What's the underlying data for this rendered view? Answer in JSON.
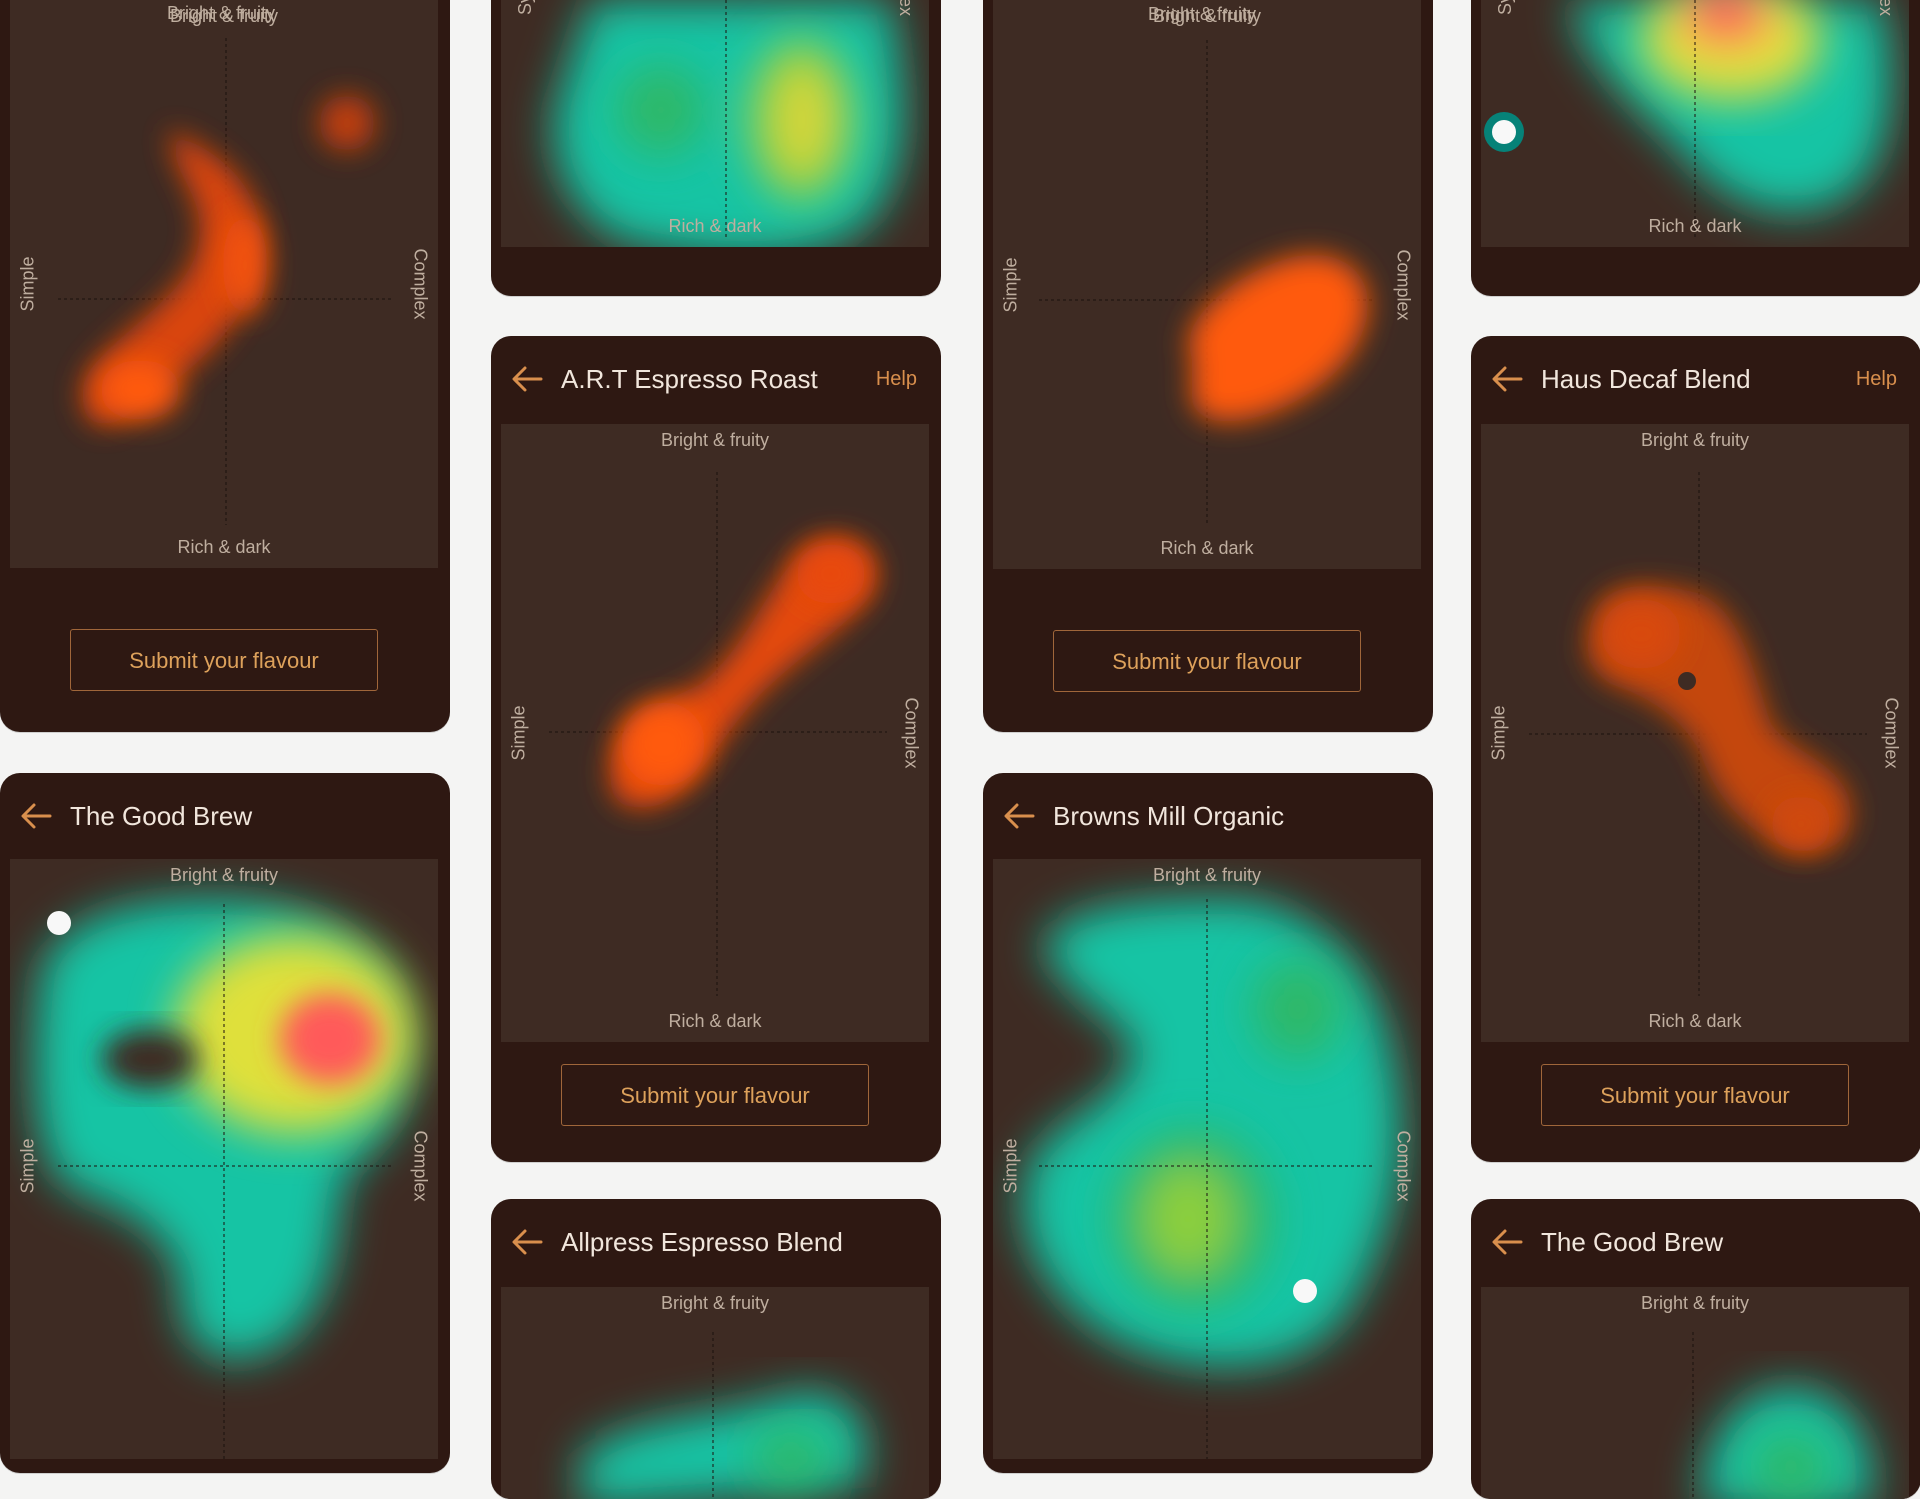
{
  "axes": {
    "top": "Bright & fruity",
    "bottom": "Rich & dark",
    "left": "Simple",
    "right": "Complex",
    "top_cut_a": "fruity",
    "right_cut": "ex",
    "left_cut": "Sy"
  },
  "submit_label": "Submit your flavour",
  "help_label": "Help",
  "colors": {
    "card_bg": "#2e1812",
    "plot_bg": "#3e2b23",
    "accent": "#d98f4d",
    "heat_orange": "#ff5a10",
    "heat_teal": "#14c4a4",
    "heat_yellow": "#e4e03a",
    "heat_red": "#ff5a5a"
  },
  "cards": {
    "c1": {
      "title": ""
    },
    "c2": {
      "title": ""
    },
    "c3": {
      "title": ""
    },
    "c4": {
      "title": ""
    },
    "c5": {
      "title": "A.R.T Espresso Roast"
    },
    "c6": {
      "title": "Haus Decaf Blend"
    },
    "c7": {
      "title": "The Good Brew"
    },
    "c8": {
      "title": "Browns Mill Organic"
    },
    "c9": {
      "title": "Allpress Espresso Blend"
    },
    "c10": {
      "title": "The Good Brew"
    }
  },
  "icons": {
    "back": "arrow-left-icon"
  }
}
